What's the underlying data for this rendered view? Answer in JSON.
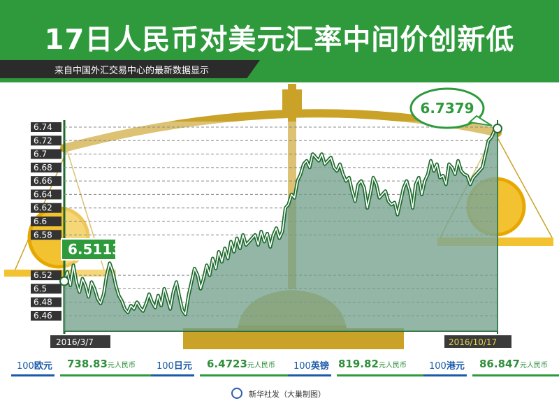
{
  "header": {
    "title": "17日人民币对美元汇率中间价创新低",
    "subtitle": "来自中国外汇交易中心的最新数据显示"
  },
  "chart_data": {
    "type": "area",
    "title": "17日人民币对美元汇率中间价创新低",
    "y_ticks": [
      "6.74",
      "6.72",
      "6.7",
      "6.68",
      "6.66",
      "6.64",
      "6.62",
      "6.6",
      "6.58",
      "6.52",
      "6.5",
      "6.48",
      "6.46"
    ],
    "ylim": [
      6.46,
      6.74
    ],
    "x_start_label": "2016/3/7",
    "x_end_label": "2016/10/17",
    "start_value_label": "6.5113",
    "end_value_label": "6.7379",
    "series": [
      {
        "values": [
          6.5113,
          6.525,
          6.505,
          6.535,
          6.51,
          6.495,
          6.515,
          6.505,
          6.488,
          6.51,
          6.5,
          6.485,
          6.478,
          6.492,
          6.52,
          6.538,
          6.525,
          6.505,
          6.49,
          6.482,
          6.47,
          6.465,
          6.475,
          6.47,
          6.48,
          6.472,
          6.467,
          6.478,
          6.492,
          6.48,
          6.472,
          6.49,
          6.475,
          6.5,
          6.485,
          6.47,
          6.495,
          6.51,
          6.488,
          6.468,
          6.462,
          6.49,
          6.51,
          6.53,
          6.52,
          6.5,
          6.515,
          6.535,
          6.52,
          6.545,
          6.53,
          6.555,
          6.54,
          6.56,
          6.545,
          6.57,
          6.555,
          6.575,
          6.56,
          6.58,
          6.565,
          6.57,
          6.575,
          6.58,
          6.565,
          6.585,
          6.57,
          6.582,
          6.562,
          6.58,
          6.59,
          6.575,
          6.585,
          6.62,
          6.625,
          6.64,
          6.635,
          6.66,
          6.67,
          6.685,
          6.69,
          6.68,
          6.7,
          6.695,
          6.69,
          6.7,
          6.685,
          6.69,
          6.695,
          6.68,
          6.675,
          6.685,
          6.67,
          6.66,
          6.665,
          6.645,
          6.63,
          6.655,
          6.66,
          6.65,
          6.62,
          6.64,
          6.665,
          6.655,
          6.635,
          6.64,
          6.645,
          6.63,
          6.625,
          6.628,
          6.61,
          6.63,
          6.65,
          6.66,
          6.645,
          6.62,
          6.655,
          6.665,
          6.64,
          6.66,
          6.67,
          6.69,
          6.675,
          6.685,
          6.665,
          6.668,
          6.655,
          6.685,
          6.68,
          6.67,
          6.69,
          6.675,
          6.67,
          6.668,
          6.655,
          6.665,
          6.67,
          6.675,
          6.68,
          6.7,
          6.72,
          6.725,
          6.735,
          6.7379
        ]
      }
    ],
    "grid": true,
    "legend": "none"
  },
  "currencies": [
    {
      "unit": "100",
      "name": "欧元",
      "value": "738.83",
      "suffix": "元人民币"
    },
    {
      "unit": "100",
      "name": "日元",
      "value": "6.4723",
      "suffix": "元人民币"
    },
    {
      "unit": "100",
      "name": "英镑",
      "value": "819.82",
      "suffix": "元人民币"
    },
    {
      "unit": "100",
      "name": "港元",
      "value": "86.847",
      "suffix": "元人民币"
    }
  ],
  "credit": "新华社发（大巢制图）",
  "colors": {
    "green": "#2e9a3c",
    "line": "#1e6b2e",
    "area": "#6f9e88",
    "gold": "#c9a227",
    "yellow": "#f2c230",
    "blue": "#1a5aa8",
    "dark": "#2b2b2b"
  }
}
